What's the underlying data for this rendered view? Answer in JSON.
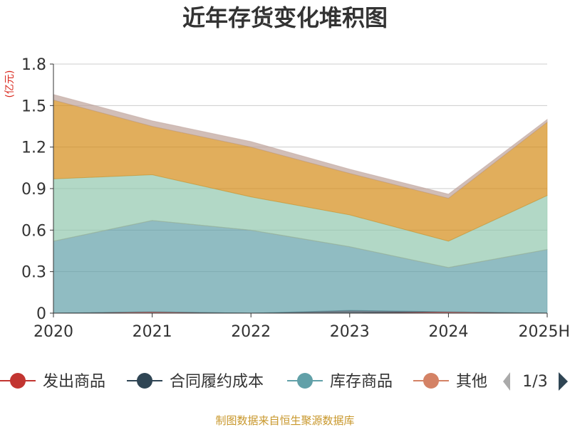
{
  "chart_data": {
    "type": "area",
    "title": "近年存货变化堆积图",
    "unit_label": "(亿元)",
    "categories": [
      "2020",
      "2021",
      "2022",
      "2023",
      "2024",
      "2025H"
    ],
    "y_ticks": [
      "0",
      "0.3",
      "0.6",
      "0.9",
      "1.2",
      "1.5",
      "1.8"
    ],
    "ylim": [
      0,
      1.8
    ],
    "grid": true,
    "stacked": true,
    "series": [
      {
        "name": "发出商品",
        "color": "#c23531",
        "values": [
          0.0,
          0.01,
          0.0,
          0.0,
          0.01,
          0.0
        ]
      },
      {
        "name": "合同履约成本",
        "color": "#2f4554",
        "values": [
          0.0,
          0.0,
          0.0,
          0.02,
          0.0,
          0.0
        ]
      },
      {
        "name": "库存商品",
        "color": "#61a0a8",
        "values": [
          0.52,
          0.66,
          0.6,
          0.46,
          0.32,
          0.46
        ]
      },
      {
        "name": "其他",
        "color": "#d48265",
        "values": [
          0.0,
          0.0,
          0.0,
          0.0,
          0.0,
          0.0
        ]
      },
      {
        "name": "",
        "color": "#91c7ae",
        "values": [
          0.45,
          0.33,
          0.24,
          0.23,
          0.19,
          0.39
        ]
      },
      {
        "name": "",
        "color": "#d48c17",
        "values": [
          0.57,
          0.35,
          0.36,
          0.3,
          0.31,
          0.53
        ]
      },
      {
        "name": "",
        "color": "#bda29a",
        "values": [
          0.04,
          0.04,
          0.04,
          0.03,
          0.03,
          0.02
        ]
      }
    ]
  },
  "legend": {
    "items": [
      {
        "name": "发出商品",
        "color": "#c23531"
      },
      {
        "name": "合同履约成本",
        "color": "#2f4554"
      },
      {
        "name": "库存商品",
        "color": "#61a0a8"
      },
      {
        "name": "其他",
        "color": "#d48265"
      }
    ],
    "page": "1/3",
    "arrow_prev_color": "#aaaaaa",
    "arrow_next_color": "#2f4554"
  },
  "source": "制图数据来自恒生聚源数据库"
}
